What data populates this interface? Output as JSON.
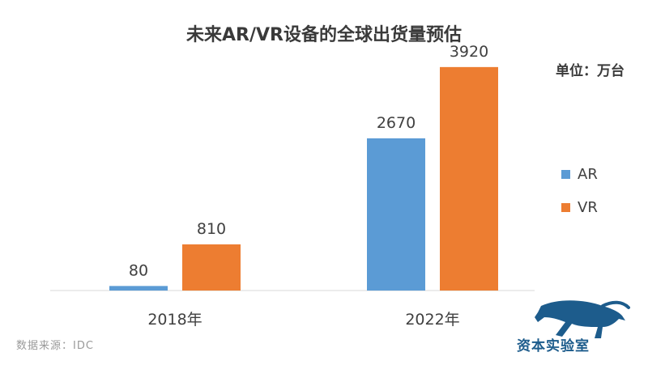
{
  "chart_data": {
    "type": "bar",
    "title": "未来AR/VR设备的全球出货量预估",
    "unit": "单位：万台",
    "categories": [
      "2018年",
      "2022年"
    ],
    "series": [
      {
        "name": "AR",
        "values": [
          80,
          2670
        ],
        "color": "#5b9bd5"
      },
      {
        "name": "VR",
        "values": [
          810,
          3920
        ],
        "color": "#ed7d31"
      }
    ],
    "ylim": [
      0,
      4500
    ],
    "legend": "right",
    "grid": false
  },
  "source": "数据来源：IDC",
  "brand": {
    "name": "资本实验室",
    "logo": "panther-icon"
  }
}
